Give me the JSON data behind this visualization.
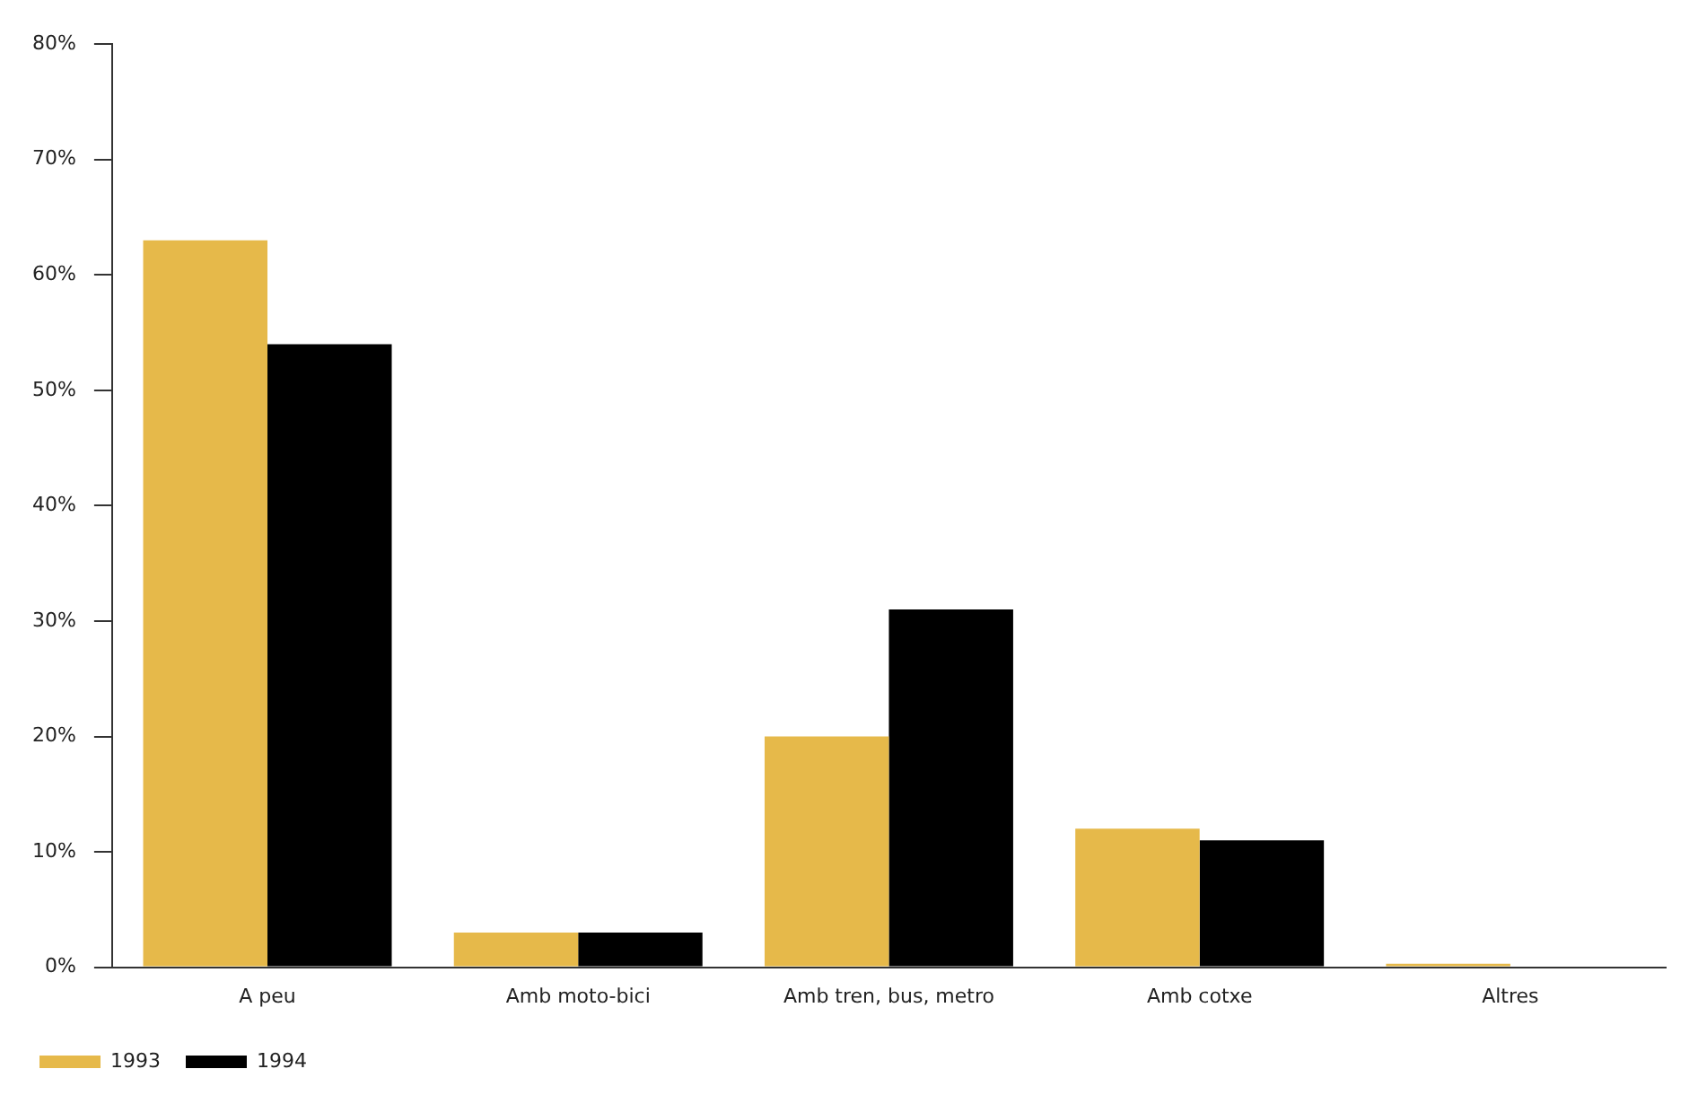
{
  "chart_data": {
    "type": "bar",
    "categories": [
      "A peu",
      "Amb moto-bici",
      "Amb tren, bus, metro",
      "Amb cotxe",
      "Altres"
    ],
    "series": [
      {
        "name": "1993",
        "color": "#e6b94a",
        "values": [
          63,
          3,
          20,
          12,
          0.3
        ]
      },
      {
        "name": "1994",
        "color": "#000000",
        "values": [
          54,
          3,
          31,
          11,
          0
        ]
      }
    ],
    "ylim": [
      0,
      80
    ],
    "yticks": [
      {
        "value": 0,
        "label": "0%"
      },
      {
        "value": 10,
        "label": "10%"
      },
      {
        "value": 20,
        "label": "20%"
      },
      {
        "value": 30,
        "label": "30%"
      },
      {
        "value": 40,
        "label": "40%"
      },
      {
        "value": 50,
        "label": "50%"
      },
      {
        "value": 60,
        "label": "60%"
      },
      {
        "value": 70,
        "label": "70%"
      },
      {
        "value": 80,
        "label": "80%"
      }
    ],
    "grid": false,
    "legend": "bottom left"
  }
}
